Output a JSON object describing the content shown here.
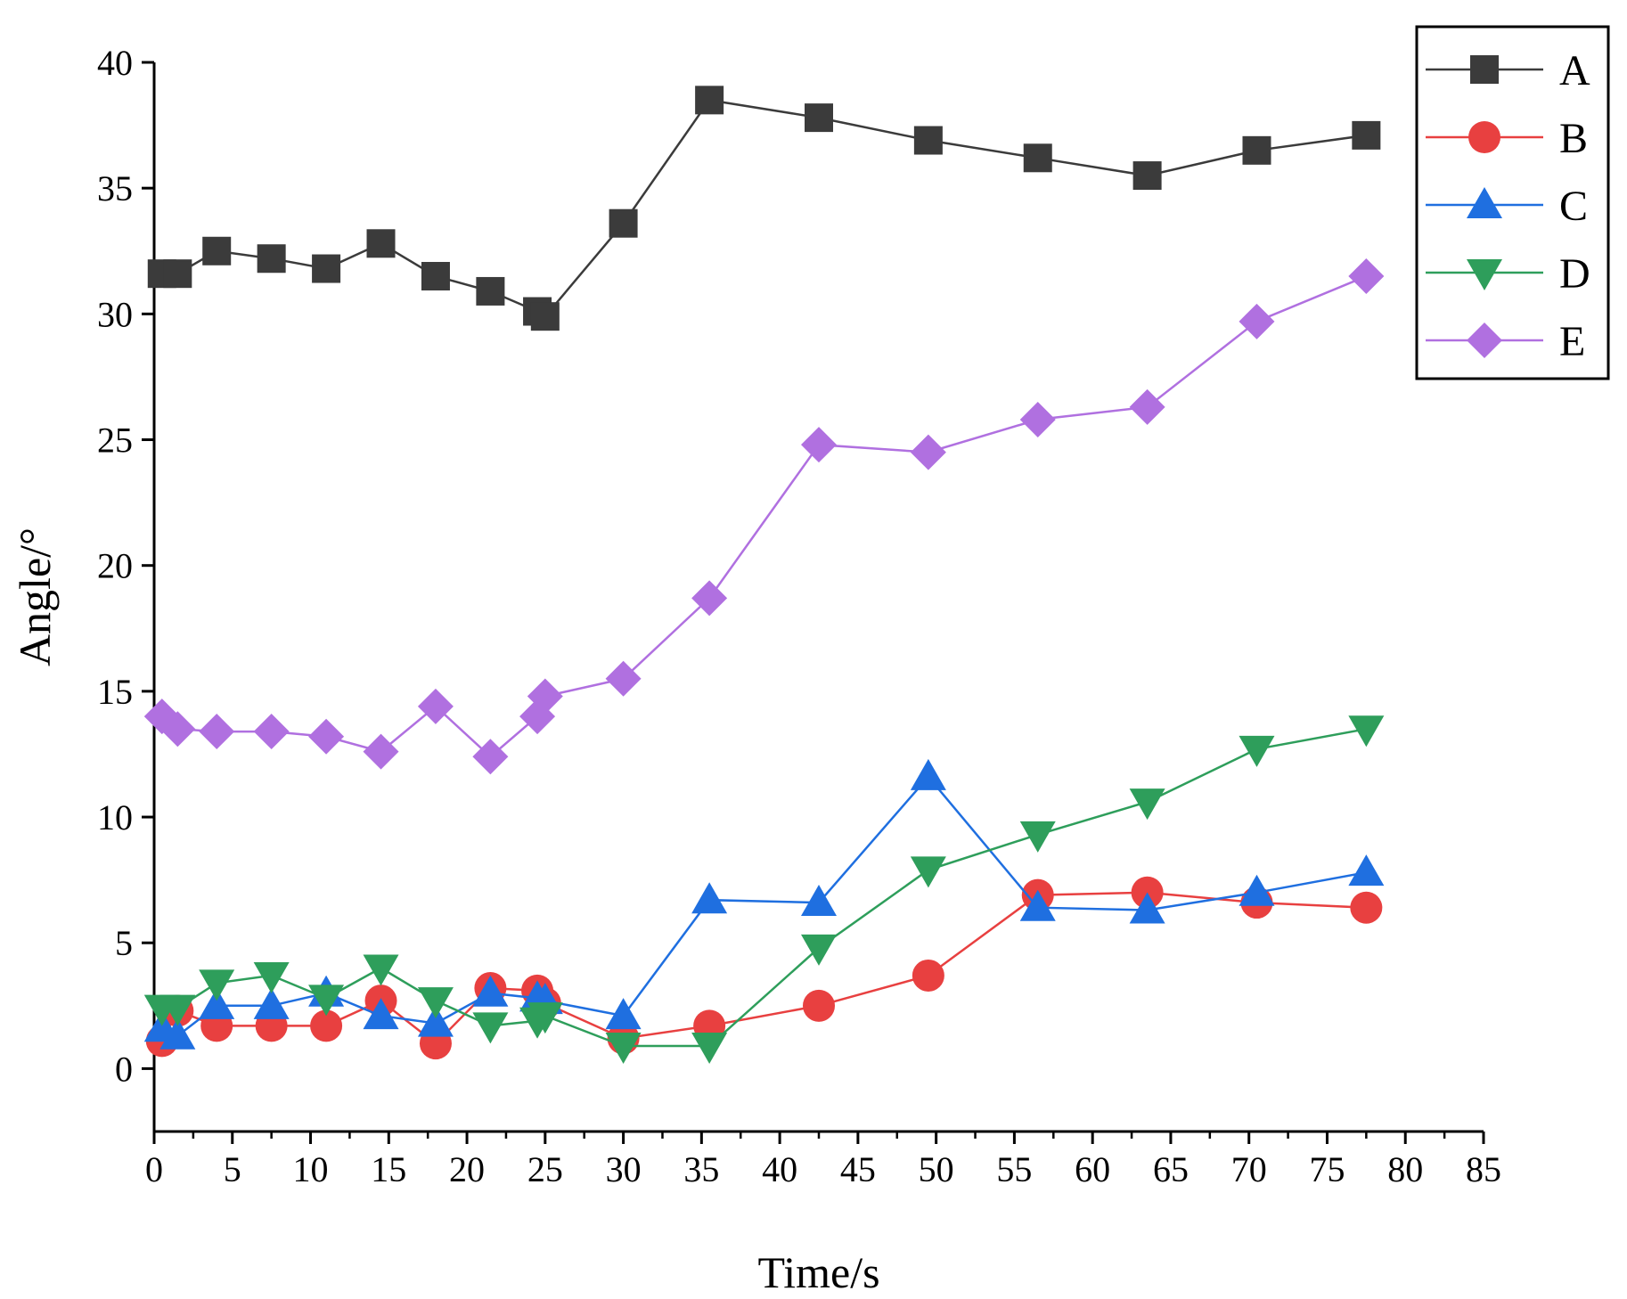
{
  "chart_data": {
    "type": "line",
    "title": "",
    "xlabel": "Time/s",
    "ylabel": "Angle/°",
    "xlim": [
      0,
      85
    ],
    "ylim": [
      -2.5,
      40
    ],
    "xticks": [
      0,
      5,
      10,
      15,
      20,
      25,
      30,
      35,
      40,
      45,
      50,
      55,
      60,
      65,
      70,
      75,
      80,
      85
    ],
    "yticks": [
      0,
      5,
      10,
      15,
      20,
      25,
      30,
      35,
      40
    ],
    "grid": false,
    "legend_position": "top-right",
    "x": [
      0.5,
      1.5,
      4,
      7.5,
      11,
      14.5,
      18,
      21.5,
      24.5,
      25,
      30,
      35.5,
      42.5,
      49.5,
      56.5,
      63.5,
      70.5,
      77.5
    ],
    "series": [
      {
        "name": "A",
        "color": "#3b3b3b",
        "marker": "square",
        "values": [
          31.6,
          31.6,
          32.5,
          32.2,
          31.8,
          32.8,
          31.5,
          30.9,
          30.1,
          29.9,
          33.6,
          38.5,
          37.8,
          36.9,
          36.2,
          35.5,
          36.5,
          37.1
        ]
      },
      {
        "name": "B",
        "color": "#e84040",
        "marker": "circle",
        "values": [
          1.1,
          2.3,
          1.7,
          1.7,
          1.7,
          2.7,
          1.0,
          3.2,
          3.1,
          2.6,
          1.2,
          1.7,
          2.5,
          3.7,
          6.9,
          7.0,
          6.6,
          6.4
        ]
      },
      {
        "name": "C",
        "color": "#1f6fe0",
        "marker": "triangle-up",
        "values": [
          1.6,
          1.3,
          2.5,
          2.5,
          3.0,
          2.1,
          1.8,
          3.0,
          2.8,
          2.7,
          2.1,
          6.7,
          6.6,
          11.6,
          6.4,
          6.3,
          7.0,
          7.8
        ]
      },
      {
        "name": "D",
        "color": "#2e9e5b",
        "marker": "triangle-down",
        "values": [
          2.4,
          2.4,
          3.4,
          3.7,
          2.8,
          4.0,
          2.7,
          1.7,
          1.9,
          2.1,
          0.9,
          0.9,
          4.8,
          7.9,
          9.3,
          10.6,
          12.7,
          13.5
        ]
      },
      {
        "name": "E",
        "color": "#b070e0",
        "marker": "diamond",
        "values": [
          14.0,
          13.5,
          13.4,
          13.4,
          13.2,
          12.6,
          14.4,
          12.4,
          14.0,
          14.8,
          15.5,
          18.7,
          24.8,
          24.5,
          25.8,
          26.3,
          29.7,
          31.5
        ]
      }
    ]
  }
}
